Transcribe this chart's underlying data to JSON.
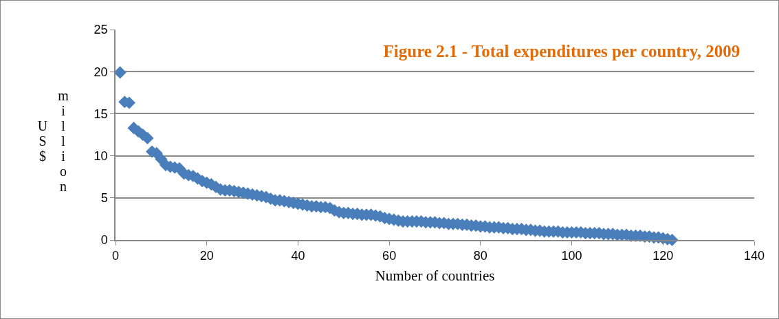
{
  "chart_data": {
    "type": "scatter",
    "title": "Figure 2.1 - Total expenditures per country, 2009",
    "xlabel": "Number of countries",
    "ylabel": "US$ million",
    "x": [
      1,
      2,
      3,
      4,
      5,
      6,
      7,
      8,
      9,
      10,
      11,
      12,
      13,
      14,
      15,
      16,
      17,
      18,
      19,
      20,
      21,
      22,
      23,
      24,
      25,
      26,
      27,
      28,
      29,
      30,
      31,
      32,
      33,
      34,
      35,
      36,
      37,
      38,
      39,
      40,
      41,
      42,
      43,
      44,
      45,
      46,
      47,
      48,
      49,
      50,
      51,
      52,
      53,
      54,
      55,
      56,
      57,
      58,
      59,
      60,
      61,
      62,
      63,
      64,
      65,
      66,
      67,
      68,
      69,
      70,
      71,
      72,
      73,
      74,
      75,
      76,
      77,
      78,
      79,
      80,
      81,
      82,
      83,
      84,
      85,
      86,
      87,
      88,
      89,
      90,
      91,
      92,
      93,
      94,
      95,
      96,
      97,
      98,
      99,
      100,
      101,
      102,
      103,
      104,
      105,
      106,
      107,
      108,
      109,
      110,
      111,
      112,
      113,
      114,
      115,
      116,
      117,
      118,
      119,
      120,
      121,
      122
    ],
    "series": [
      {
        "color": "#4a7ebb",
        "values": [
          19.9,
          16.4,
          16.3,
          13.3,
          12.9,
          12.5,
          12.1,
          10.5,
          10.3,
          9.6,
          8.9,
          8.7,
          8.6,
          8.5,
          7.9,
          7.7,
          7.6,
          7.3,
          7.0,
          6.8,
          6.6,
          6.3,
          6.0,
          5.9,
          5.9,
          5.8,
          5.7,
          5.6,
          5.5,
          5.4,
          5.3,
          5.2,
          5.1,
          4.9,
          4.7,
          4.7,
          4.6,
          4.5,
          4.4,
          4.3,
          4.2,
          4.1,
          4.0,
          4.0,
          3.9,
          3.9,
          3.8,
          3.5,
          3.3,
          3.2,
          3.2,
          3.1,
          3.1,
          3.0,
          3.0,
          3.0,
          2.9,
          2.8,
          2.6,
          2.5,
          2.4,
          2.3,
          2.2,
          2.2,
          2.2,
          2.2,
          2.2,
          2.1,
          2.1,
          2.1,
          2.0,
          2.0,
          1.9,
          1.9,
          1.9,
          1.8,
          1.8,
          1.7,
          1.7,
          1.6,
          1.6,
          1.5,
          1.5,
          1.5,
          1.4,
          1.4,
          1.3,
          1.3,
          1.3,
          1.2,
          1.2,
          1.1,
          1.1,
          1.0,
          1.0,
          1.0,
          1.0,
          0.9,
          0.9,
          0.9,
          0.9,
          0.9,
          0.8,
          0.8,
          0.8,
          0.8,
          0.7,
          0.7,
          0.7,
          0.6,
          0.6,
          0.6,
          0.5,
          0.5,
          0.5,
          0.4,
          0.4,
          0.3,
          0.3,
          0.2,
          0.1,
          0.0
        ]
      }
    ],
    "xlim": [
      0,
      140
    ],
    "xticks": [
      0,
      20,
      40,
      60,
      80,
      100,
      120,
      140
    ],
    "ylim": [
      0,
      25
    ],
    "yticks": [
      0,
      5,
      10,
      15,
      20,
      25
    ],
    "grid": "y",
    "marker": "diamond"
  }
}
